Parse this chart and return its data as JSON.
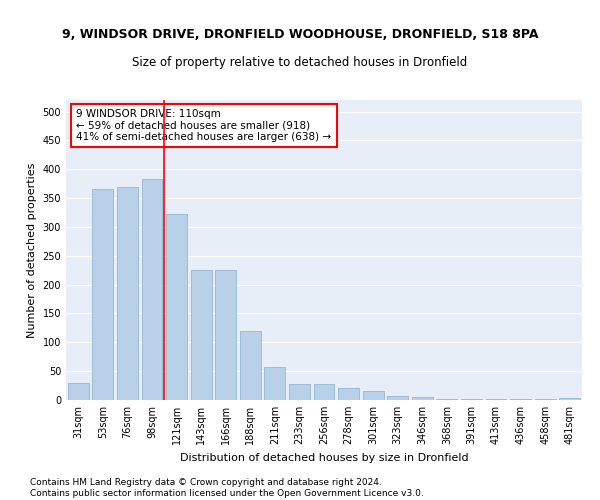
{
  "title_line1": "9, WINDSOR DRIVE, DRONFIELD WOODHOUSE, DRONFIELD, S18 8PA",
  "title_line2": "Size of property relative to detached houses in Dronfield",
  "xlabel": "Distribution of detached houses by size in Dronfield",
  "ylabel": "Number of detached properties",
  "categories": [
    "31sqm",
    "53sqm",
    "76sqm",
    "98sqm",
    "121sqm",
    "143sqm",
    "166sqm",
    "188sqm",
    "211sqm",
    "233sqm",
    "256sqm",
    "278sqm",
    "301sqm",
    "323sqm",
    "346sqm",
    "368sqm",
    "391sqm",
    "413sqm",
    "436sqm",
    "458sqm",
    "481sqm"
  ],
  "values": [
    29,
    365,
    370,
    383,
    323,
    225,
    225,
    120,
    58,
    28,
    28,
    20,
    15,
    7,
    5,
    1,
    1,
    1,
    1,
    1,
    3
  ],
  "bar_color": "#b8d0e8",
  "bar_edge_color": "#8ab0cc",
  "vline_color": "red",
  "annotation_text": "9 WINDSOR DRIVE: 110sqm\n← 59% of detached houses are smaller (918)\n41% of semi-detached houses are larger (638) →",
  "annotation_box_color": "white",
  "annotation_box_edgecolor": "red",
  "ylim": [
    0,
    520
  ],
  "yticks": [
    0,
    50,
    100,
    150,
    200,
    250,
    300,
    350,
    400,
    450,
    500
  ],
  "bg_color": "#e8eef8",
  "grid_color": "white",
  "footer": "Contains HM Land Registry data © Crown copyright and database right 2024.\nContains public sector information licensed under the Open Government Licence v3.0.",
  "title_fontsize": 9,
  "subtitle_fontsize": 8.5,
  "axis_label_fontsize": 8,
  "tick_fontsize": 7,
  "footer_fontsize": 6.5,
  "annotation_fontsize": 7.5
}
